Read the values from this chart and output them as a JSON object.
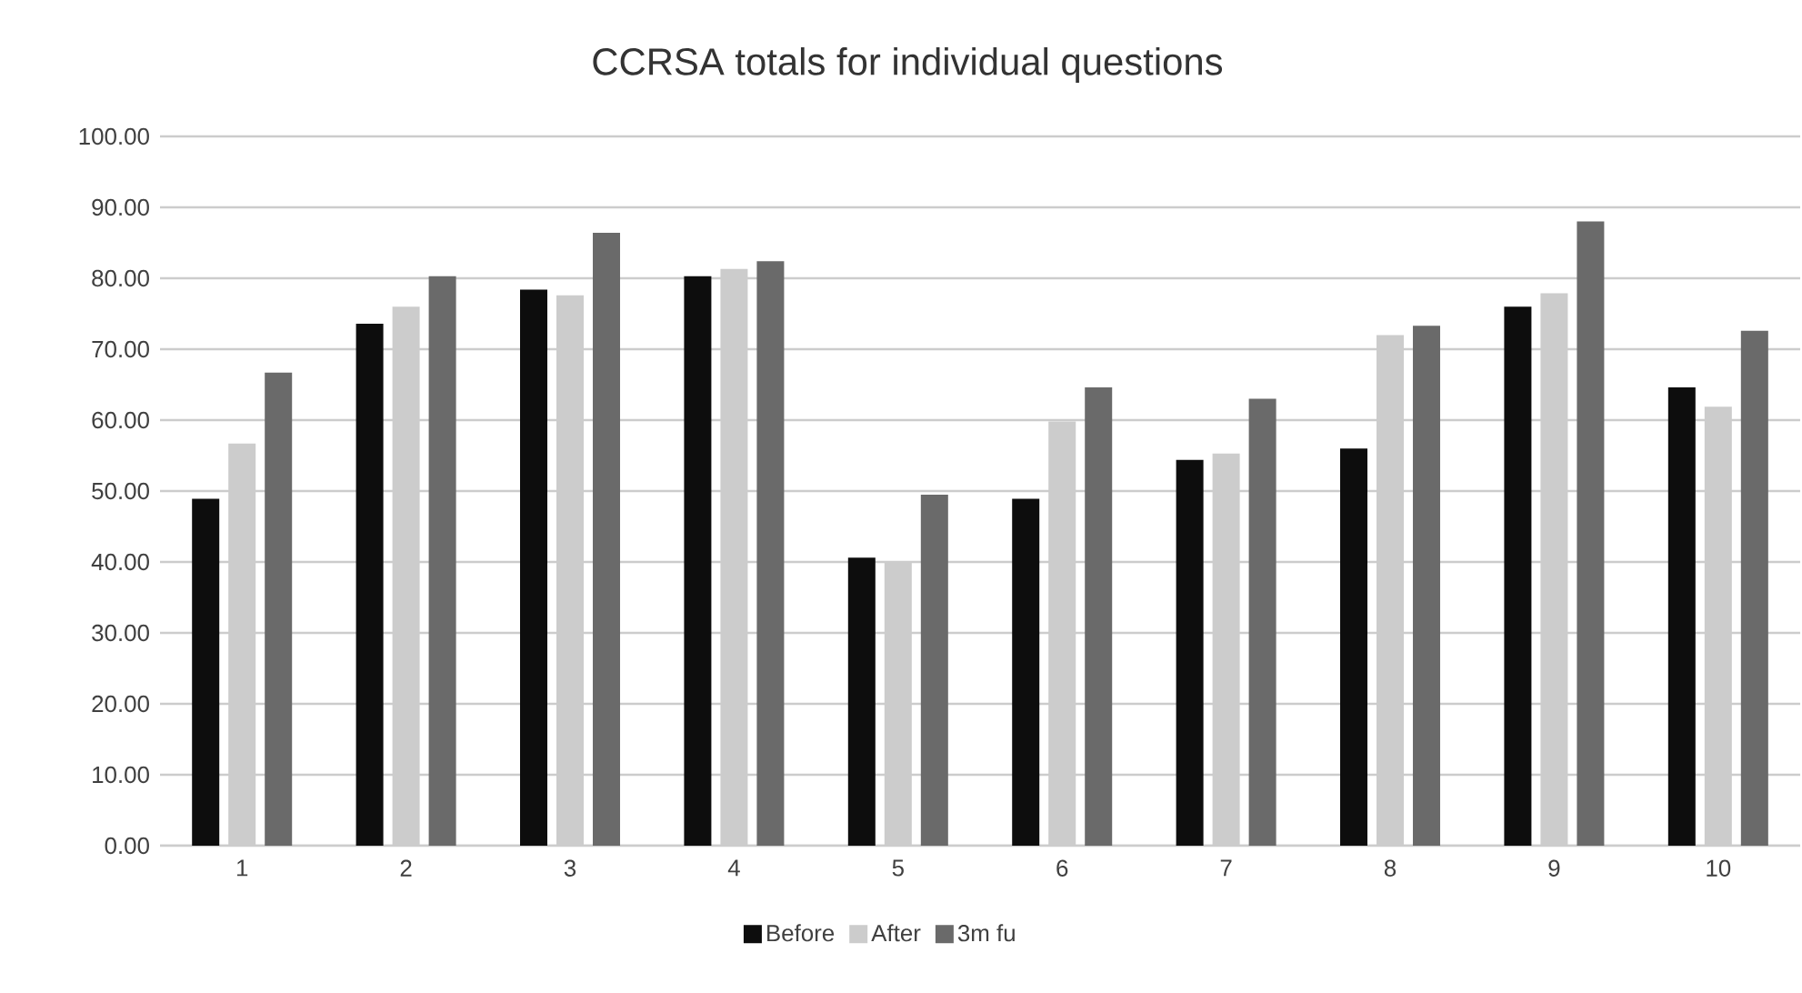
{
  "chart_data": {
    "type": "bar",
    "title": "CCRSA totals for individual questions",
    "categories": [
      "1",
      "2",
      "3",
      "4",
      "5",
      "6",
      "7",
      "8",
      "9",
      "10"
    ],
    "series": [
      {
        "name": "Before",
        "color": "#0d0d0d",
        "values": [
          48.9,
          73.6,
          78.4,
          80.3,
          40.6,
          48.9,
          54.4,
          56.0,
          76.0,
          64.6
        ]
      },
      {
        "name": "After",
        "color": "#cccccc",
        "values": [
          56.7,
          76.0,
          77.6,
          81.3,
          39.9,
          59.8,
          55.3,
          72.0,
          77.9,
          61.9
        ]
      },
      {
        "name": "3m fu",
        "color": "#6a6a6a",
        "values": [
          66.7,
          80.3,
          86.4,
          82.4,
          49.5,
          64.6,
          63.0,
          73.3,
          88.0,
          72.6
        ]
      }
    ],
    "ylim": [
      0,
      100
    ],
    "yticks": [
      {
        "value": 0,
        "label": "0.00"
      },
      {
        "value": 10,
        "label": "10.00"
      },
      {
        "value": 20,
        "label": "20.00"
      },
      {
        "value": 30,
        "label": "30.00"
      },
      {
        "value": 40,
        "label": "40.00"
      },
      {
        "value": 50,
        "label": "50.00"
      },
      {
        "value": 60,
        "label": "60.00"
      },
      {
        "value": 70,
        "label": "70.00"
      },
      {
        "value": 80,
        "label": "80.00"
      },
      {
        "value": 90,
        "label": "90.00"
      },
      {
        "value": 100,
        "label": "100.00"
      }
    ],
    "grid": "y",
    "legend": "bottom"
  }
}
